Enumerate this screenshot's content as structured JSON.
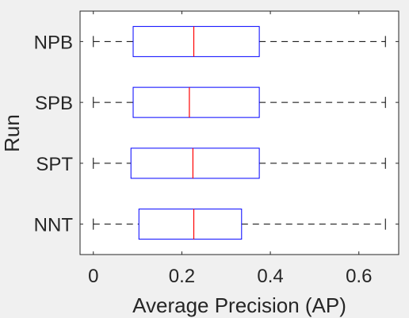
{
  "chart_data": {
    "type": "box",
    "orientation": "horizontal",
    "xlabel": "Average Precision (AP)",
    "ylabel": "Run",
    "xlim": [
      -0.03,
      0.69
    ],
    "xticks": [
      0,
      0.2,
      0.4,
      0.6
    ],
    "xtick_labels": [
      "0",
      "0.2",
      "0.4",
      "0.6"
    ],
    "grid": false,
    "colors": {
      "box": "#0000ff",
      "median": "#ff0000",
      "whisker": "#000000",
      "axes": "#262626",
      "plot_bg": "#ffffff",
      "figure_bg": "#f0f0f0"
    },
    "categories": [
      "NPB",
      "SPB",
      "SPT",
      "NNT"
    ],
    "boxes": [
      {
        "label": "NPB",
        "min": 0.0,
        "q1": 0.09,
        "median": 0.227,
        "q3": 0.375,
        "max": 0.66
      },
      {
        "label": "SPB",
        "min": 0.0,
        "q1": 0.09,
        "median": 0.217,
        "q3": 0.375,
        "max": 0.66
      },
      {
        "label": "SPT",
        "min": 0.0,
        "q1": 0.085,
        "median": 0.225,
        "q3": 0.375,
        "max": 0.66
      },
      {
        "label": "NNT",
        "min": 0.0,
        "q1": 0.103,
        "median": 0.227,
        "q3": 0.335,
        "max": 0.66
      }
    ]
  }
}
